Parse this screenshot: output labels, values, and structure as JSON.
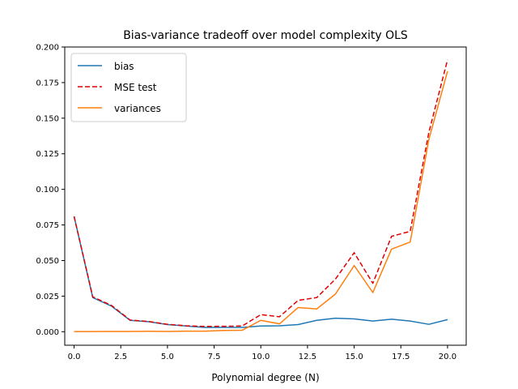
{
  "chart_data": {
    "type": "line",
    "title": "Bias-variance tradeoff over model complexity OLS",
    "xlabel": "Polynomial degree (N)",
    "ylabel": "",
    "xlim": [
      -0.5,
      21.0
    ],
    "ylim": [
      -0.0095,
      0.2
    ],
    "xticks": [
      0.0,
      2.5,
      5.0,
      7.5,
      10.0,
      12.5,
      15.0,
      17.5,
      20.0
    ],
    "xtick_labels": [
      "0.0",
      "2.5",
      "5.0",
      "7.5",
      "10.0",
      "12.5",
      "15.0",
      "17.5",
      "20.0"
    ],
    "yticks": [
      0.0,
      0.025,
      0.05,
      0.075,
      0.1,
      0.125,
      0.15,
      0.175,
      0.2
    ],
    "ytick_labels": [
      "0.000",
      "0.025",
      "0.050",
      "0.075",
      "0.100",
      "0.125",
      "0.150",
      "0.175",
      "0.200"
    ],
    "grid": false,
    "legend_position": "top-left",
    "x": [
      0,
      1,
      2,
      3,
      4,
      5,
      6,
      7,
      8,
      9,
      10,
      11,
      12,
      13,
      14,
      15,
      16,
      17,
      18,
      19,
      20
    ],
    "series": [
      {
        "name": "bias",
        "color": "#1f77b4",
        "style": "solid",
        "values": [
          0.081,
          0.024,
          0.018,
          0.008,
          0.007,
          0.005,
          0.004,
          0.003,
          0.003,
          0.003,
          0.004,
          0.0042,
          0.005,
          0.008,
          0.0095,
          0.009,
          0.0075,
          0.0088,
          0.0075,
          0.0052,
          0.0085
        ]
      },
      {
        "name": "MSE test",
        "color": "#e00000",
        "style": "dashed",
        "values": [
          0.081,
          0.0245,
          0.0185,
          0.0082,
          0.0072,
          0.0052,
          0.0042,
          0.0037,
          0.0038,
          0.004,
          0.012,
          0.0105,
          0.022,
          0.024,
          0.037,
          0.0555,
          0.034,
          0.067,
          0.0705,
          0.14,
          0.191
        ]
      },
      {
        "name": "variances",
        "color": "#ff7f0e",
        "style": "solid",
        "values": [
          0.0001,
          0.0001,
          0.0002,
          0.0002,
          0.0003,
          0.0002,
          0.0004,
          0.0004,
          0.0009,
          0.001,
          0.008,
          0.0055,
          0.017,
          0.016,
          0.0265,
          0.0465,
          0.0275,
          0.058,
          0.063,
          0.135,
          0.183
        ]
      }
    ]
  }
}
